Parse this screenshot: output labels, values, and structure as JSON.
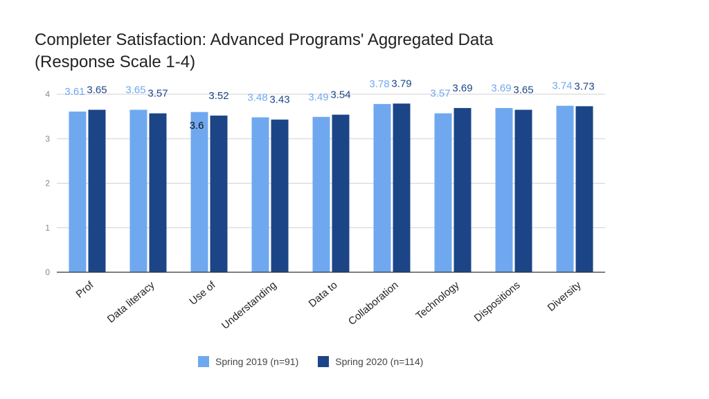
{
  "chart_data": {
    "type": "bar",
    "title": "Completer Satisfaction: Advanced Programs' Aggregated Data (Response Scale 1-4)",
    "title_lines": [
      "Completer Satisfaction: Advanced Programs' Aggregated Data",
      "(Response Scale 1-4)"
    ],
    "categories": [
      "Prof",
      "Data literacy",
      "Use of",
      "Understanding",
      "Data to",
      "Collaboration",
      "Technology",
      "Dispositions",
      "Diversity"
    ],
    "series": [
      {
        "name": "Spring 2019 (n=91)",
        "color": "#6fa8ef",
        "label_color": "#6fa8ef",
        "values": [
          3.61,
          3.65,
          3.6,
          3.48,
          3.49,
          3.78,
          3.57,
          3.69,
          3.74
        ],
        "label_texts": [
          "3.61",
          "3.65",
          "3.6",
          "3.48",
          "3.49",
          "3.78",
          "3.57",
          "3.69",
          "3.74"
        ]
      },
      {
        "name": "Spring 2020 (n=114)",
        "color": "#1c4587",
        "label_color": "#1c4587",
        "values": [
          3.65,
          3.57,
          3.52,
          3.43,
          3.54,
          3.79,
          3.69,
          3.65,
          3.73
        ],
        "label_texts": [
          "3.65",
          "3.57",
          "3.52",
          "3.43",
          "3.54",
          "3.79",
          "3.69",
          "3.65",
          "3.73"
        ]
      }
    ],
    "ylim": [
      0,
      4
    ],
    "yticks": [
      "0",
      "1",
      "2",
      "3",
      "4"
    ],
    "xlabel": "",
    "ylabel": "",
    "grid": true,
    "legend": "bottom"
  }
}
